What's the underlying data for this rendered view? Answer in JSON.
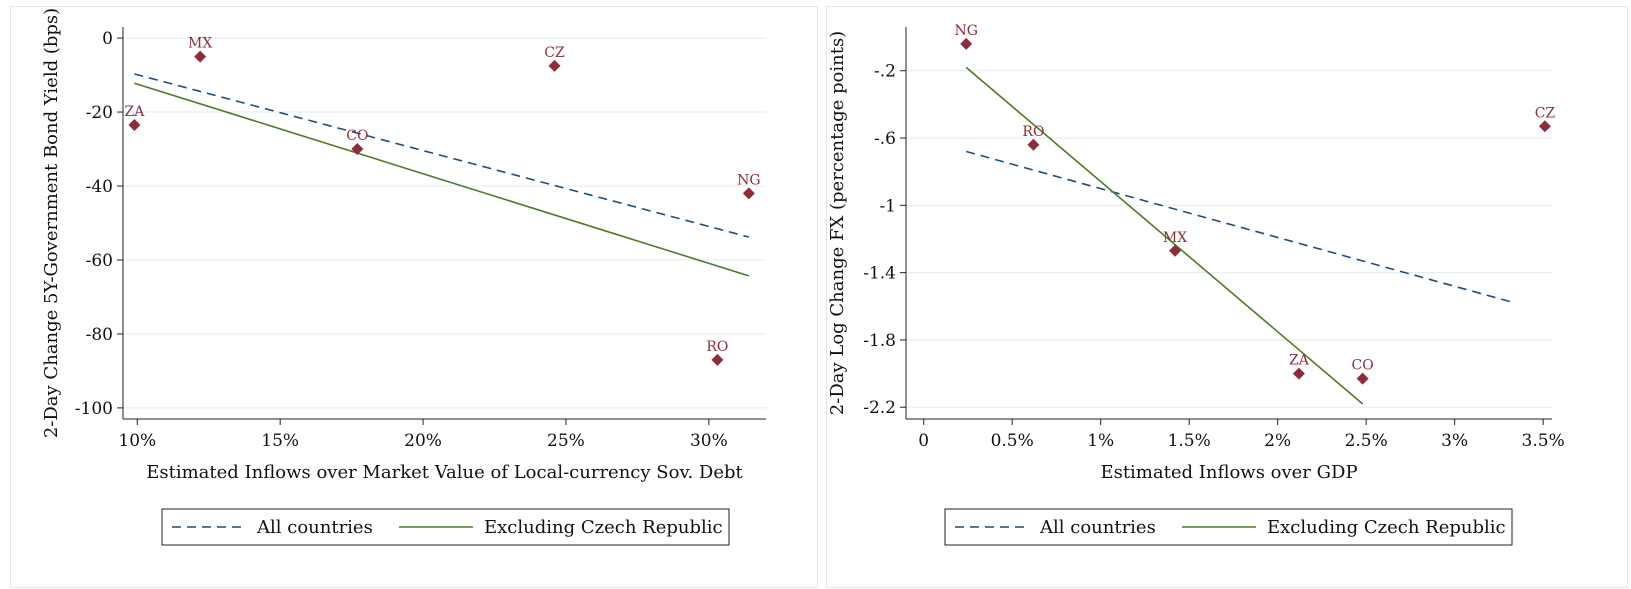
{
  "chart_data": [
    {
      "type": "scatter",
      "title": "",
      "xlabel": "Estimated Inflows over Market Value of Local-currency Sov. Debt",
      "ylabel": "2-Day Change 5Y-Government Bond Yield (bps)",
      "xlim": [
        0.095,
        0.32
      ],
      "ylim": [
        -103,
        3
      ],
      "x_ticks": [
        0.1,
        0.15,
        0.2,
        0.25,
        0.3
      ],
      "x_tick_labels": [
        "10%",
        "15%",
        "20%",
        "25%",
        "30%"
      ],
      "y_ticks": [
        0,
        -20,
        -40,
        -60,
        -80,
        -100
      ],
      "y_tick_labels": [
        "0",
        "-20",
        "-40",
        "-60",
        "-80",
        "-100"
      ],
      "grid": "horizontal",
      "legend_position": "bottom",
      "points": [
        {
          "label": "ZA",
          "x": 0.099,
          "y": -23.5
        },
        {
          "label": "MX",
          "x": 0.122,
          "y": -5
        },
        {
          "label": "CO",
          "x": 0.177,
          "y": -30
        },
        {
          "label": "CZ",
          "x": 0.246,
          "y": -7.5
        },
        {
          "label": "RO",
          "x": 0.303,
          "y": -87
        },
        {
          "label": "NG",
          "x": 0.314,
          "y": -42
        }
      ],
      "fit_lines": [
        {
          "name": "All countries",
          "style": "dashed",
          "color": "#1f4e79",
          "x": [
            0.099,
            0.314
          ],
          "y": [
            -9.7,
            -53.8
          ]
        },
        {
          "name": "Excluding Czech Republic",
          "style": "solid",
          "color": "#4f7a28",
          "x": [
            0.099,
            0.314
          ],
          "y": [
            -12.2,
            -64.3
          ]
        }
      ],
      "colors": {
        "points": "#8b2d3b",
        "grid": "#e3ebf0"
      }
    },
    {
      "type": "scatter",
      "title": "",
      "xlabel": "Estimated Inflows over GDP",
      "ylabel": "2-Day Log Change FX (percentage points)",
      "xlim": [
        -0.001,
        0.0355
      ],
      "ylim": [
        -2.27,
        0.06
      ],
      "x_ticks": [
        0,
        0.005,
        0.01,
        0.015,
        0.02,
        0.025,
        0.03,
        0.035
      ],
      "x_tick_labels": [
        "0",
        "0.5%",
        "1%",
        "1.5%",
        "2%",
        "2.5%",
        "3%",
        "3.5%"
      ],
      "y_ticks": [
        -0.2,
        -0.6,
        -1.0,
        -1.4,
        -1.8,
        -2.2
      ],
      "y_tick_labels": [
        "-.2",
        "-.6",
        "-1",
        "-1.4",
        "-1.8",
        "-2.2"
      ],
      "grid": "horizontal",
      "legend_position": "bottom",
      "points": [
        {
          "label": "NG",
          "x": 0.0024,
          "y": -0.04
        },
        {
          "label": "RO",
          "x": 0.0062,
          "y": -0.64
        },
        {
          "label": "MX",
          "x": 0.0142,
          "y": -1.27
        },
        {
          "label": "ZA",
          "x": 0.0212,
          "y": -2.0
        },
        {
          "label": "CO",
          "x": 0.0248,
          "y": -2.03
        },
        {
          "label": "CZ",
          "x": 0.0351,
          "y": -0.53
        }
      ],
      "fit_lines": [
        {
          "name": "All countries",
          "style": "dashed",
          "color": "#1f4e79",
          "x": [
            0.0024,
            0.0334
          ],
          "y": [
            -0.68,
            -1.58
          ]
        },
        {
          "name": "Excluding Czech Republic",
          "style": "solid",
          "color": "#4f7a28",
          "x": [
            0.0024,
            0.0248
          ],
          "y": [
            -0.18,
            -2.18
          ]
        }
      ],
      "colors": {
        "points": "#8b2d3b",
        "grid": "#e3ebf0"
      }
    }
  ]
}
